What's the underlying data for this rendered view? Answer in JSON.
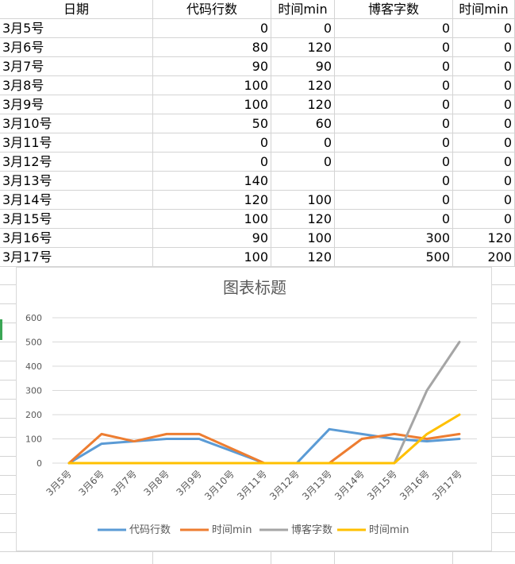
{
  "table": {
    "headers": [
      "日期",
      "代码行数",
      "时间min",
      "博客字数",
      "时间min"
    ],
    "rows": [
      [
        "3月5号",
        "0",
        "0",
        "0",
        "0"
      ],
      [
        "3月6号",
        "80",
        "120",
        "0",
        "0"
      ],
      [
        "3月7号",
        "90",
        "90",
        "0",
        "0"
      ],
      [
        "3月8号",
        "100",
        "120",
        "0",
        "0"
      ],
      [
        "3月9号",
        "100",
        "120",
        "0",
        "0"
      ],
      [
        "3月10号",
        "50",
        "60",
        "0",
        "0"
      ],
      [
        "3月11号",
        "0",
        "0",
        "0",
        "0"
      ],
      [
        "3月12号",
        "0",
        "0",
        "0",
        "0"
      ],
      [
        "3月13号",
        "140",
        "",
        "0",
        "0"
      ],
      [
        "3月14号",
        "120",
        "100",
        "0",
        "0"
      ],
      [
        "3月15号",
        "100",
        "120",
        "0",
        "0"
      ],
      [
        "3月16号",
        "90",
        "100",
        "300",
        "120"
      ],
      [
        "3月17号",
        "100",
        "120",
        "500",
        "200"
      ]
    ]
  },
  "chart_data": {
    "type": "line",
    "title": "图表标题",
    "categories": [
      "3月5号",
      "3月6号",
      "3月7号",
      "3月8号",
      "3月9号",
      "3月10号",
      "3月11号",
      "3月12号",
      "3月13号",
      "3月14号",
      "3月15号",
      "3月16号",
      "3月17号"
    ],
    "yticks": [
      "0",
      "100",
      "200",
      "300",
      "400",
      "500",
      "600"
    ],
    "ylim": [
      0,
      600
    ],
    "grid": true,
    "legend": "bottom",
    "series": [
      {
        "name": "代码行数",
        "color": "#5b9bd5",
        "values": [
          0,
          80,
          90,
          100,
          100,
          50,
          0,
          0,
          140,
          120,
          100,
          90,
          100
        ]
      },
      {
        "name": "时间min",
        "color": "#ed7d31",
        "values": [
          0,
          120,
          90,
          120,
          120,
          60,
          0,
          0,
          0,
          100,
          120,
          100,
          120
        ]
      },
      {
        "name": "博客字数",
        "color": "#a5a5a5",
        "values": [
          0,
          0,
          0,
          0,
          0,
          0,
          0,
          0,
          0,
          0,
          0,
          300,
          500
        ]
      },
      {
        "name": "时间min",
        "color": "#ffc000",
        "values": [
          0,
          0,
          0,
          0,
          0,
          0,
          0,
          0,
          0,
          0,
          0,
          120,
          200
        ]
      }
    ]
  }
}
